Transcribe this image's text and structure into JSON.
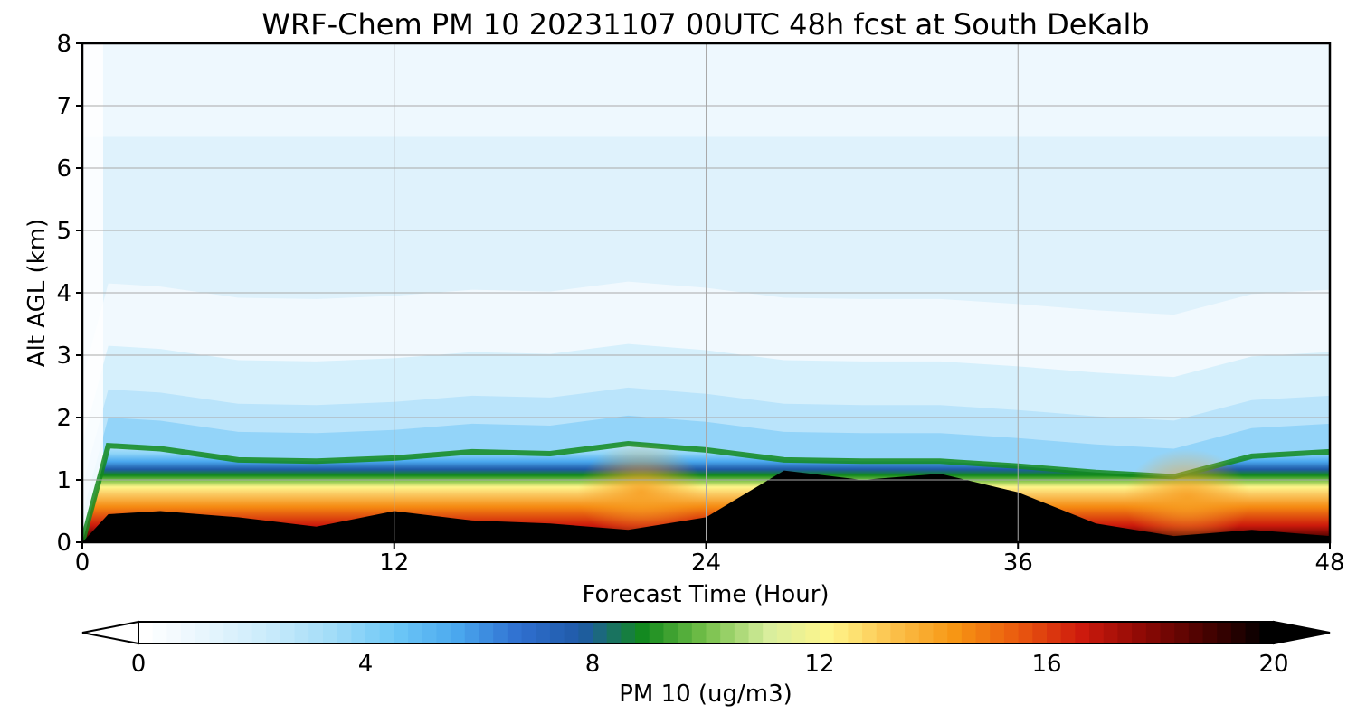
{
  "chart_data": {
    "type": "heatmap",
    "title": "WRF-Chem PM 10  20231107 00UTC 48h fcst at South DeKalb",
    "xlabel": "Forecast Time (Hour)",
    "ylabel": "Alt AGL (km)",
    "xlim": [
      0,
      48
    ],
    "ylim": [
      0,
      8
    ],
    "x_ticks": [
      "0",
      "12",
      "24",
      "36",
      "48"
    ],
    "y_ticks": [
      "0",
      "1",
      "2",
      "3",
      "4",
      "5",
      "6",
      "7",
      "8"
    ],
    "grid": true,
    "colorbar": {
      "label": "PM 10  (ug/m3)",
      "range": [
        0,
        20
      ],
      "ticks": [
        "0",
        "4",
        "8",
        "12",
        "16",
        "20"
      ],
      "extend": "both",
      "colors": [
        "#ffffff",
        "#e6f5fd",
        "#c9ebfb",
        "#a2dcf8",
        "#6ec8f7",
        "#4aa8ee",
        "#2f6fd0",
        "#1f5aa6",
        "#138a1d",
        "#76c04a",
        "#d8ee9e",
        "#fff58a",
        "#fbc14b",
        "#f79513",
        "#ea5a0f",
        "#cf1b0d",
        "#8e0905",
        "#4a0200",
        "#000000"
      ]
    },
    "hours": [
      0,
      1,
      3,
      6,
      9,
      12,
      15,
      18,
      21,
      24,
      27,
      30,
      33,
      36,
      39,
      42,
      45,
      48
    ],
    "boundary_layer_top_km": [
      0.0,
      1.55,
      1.5,
      1.32,
      1.3,
      1.35,
      1.45,
      1.42,
      1.58,
      1.48,
      1.32,
      1.3,
      1.3,
      1.22,
      1.12,
      1.05,
      1.38,
      1.45
    ],
    "surface_max_height_km": [
      0.0,
      0.45,
      0.5,
      0.4,
      0.25,
      0.5,
      0.35,
      0.3,
      0.2,
      0.4,
      1.15,
      1.0,
      1.1,
      0.8,
      0.3,
      0.1,
      0.2,
      0.1
    ]
  }
}
